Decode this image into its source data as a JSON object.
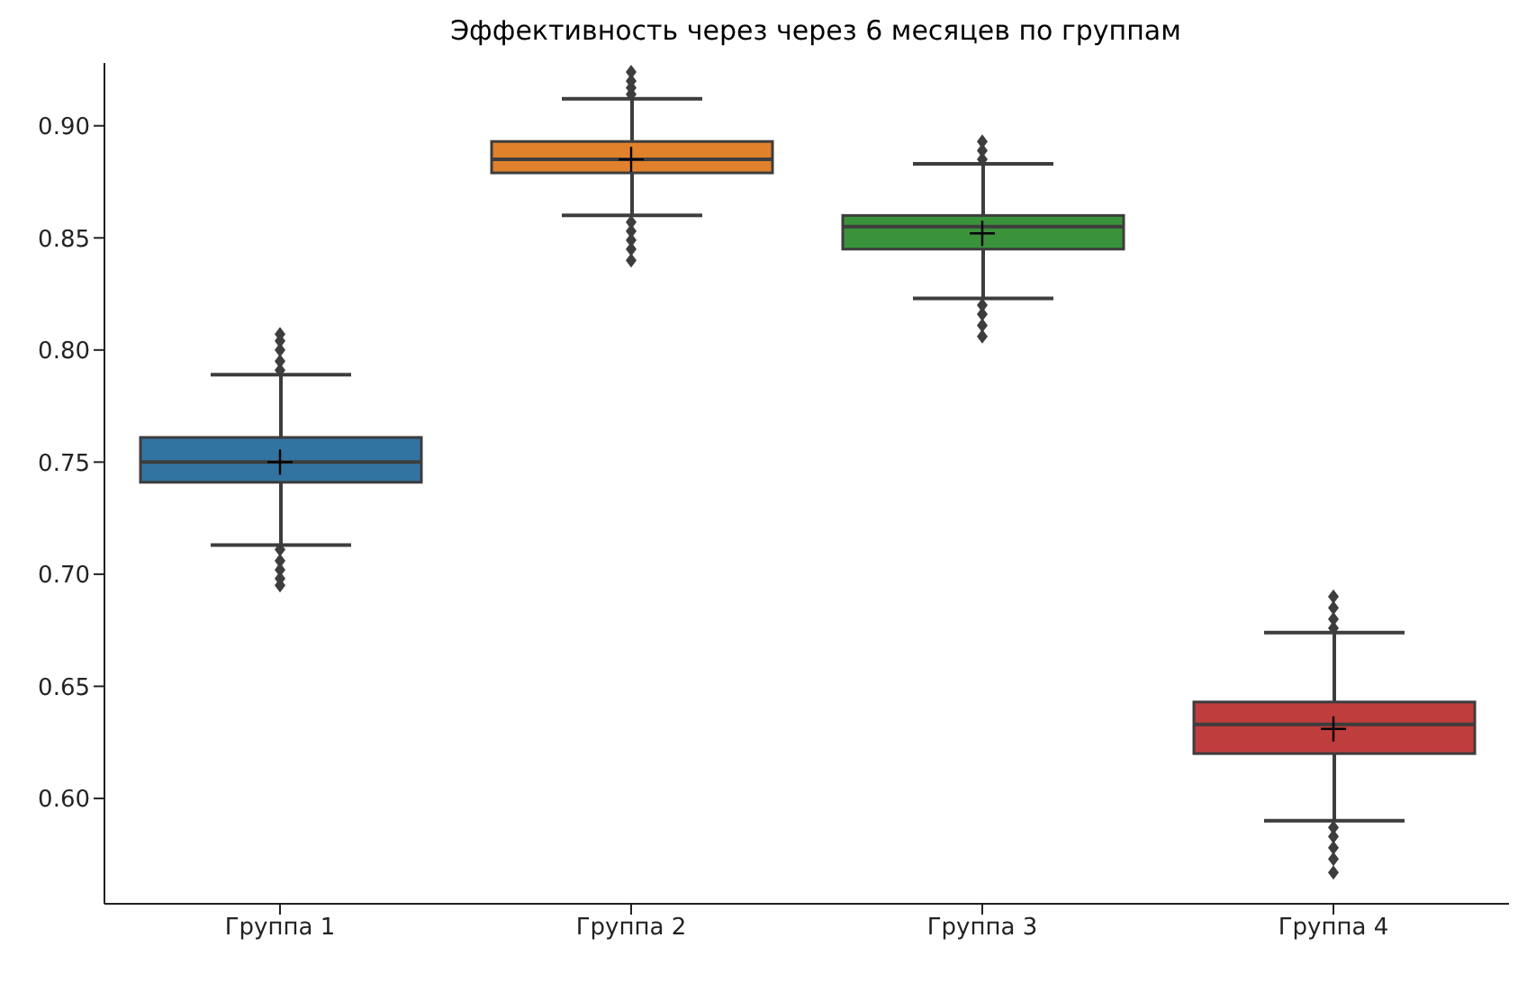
{
  "chart_data": {
    "type": "box",
    "title": "Эффективность через через 6 месяцев по группам",
    "categories": [
      "Группа 1",
      "Группа 2",
      "Группа 3",
      "Группа 4"
    ],
    "colors": [
      "#3274a1",
      "#e1812c",
      "#3a923a",
      "#c03d3e"
    ],
    "boxes": [
      {
        "low": 0.713,
        "q1": 0.741,
        "median": 0.75,
        "q3": 0.761,
        "high": 0.789,
        "mean": 0.75,
        "outliers": [
          0.791,
          0.795,
          0.8,
          0.804,
          0.807,
          0.711,
          0.706,
          0.702,
          0.698,
          0.695
        ]
      },
      {
        "low": 0.86,
        "q1": 0.879,
        "median": 0.885,
        "q3": 0.893,
        "high": 0.912,
        "mean": 0.885,
        "outliers": [
          0.914,
          0.917,
          0.92,
          0.924,
          0.857,
          0.853,
          0.849,
          0.845,
          0.84
        ]
      },
      {
        "low": 0.823,
        "q1": 0.845,
        "median": 0.855,
        "q3": 0.86,
        "high": 0.883,
        "mean": 0.852,
        "outliers": [
          0.885,
          0.889,
          0.893,
          0.82,
          0.816,
          0.811,
          0.806
        ]
      },
      {
        "low": 0.59,
        "q1": 0.62,
        "median": 0.633,
        "q3": 0.643,
        "high": 0.674,
        "mean": 0.631,
        "outliers": [
          0.676,
          0.68,
          0.685,
          0.69,
          0.587,
          0.583,
          0.578,
          0.573,
          0.567
        ]
      }
    ],
    "ylim": [
      0.553,
      0.928
    ],
    "yticks": [
      {
        "value": 0.6,
        "label": "0.60"
      },
      {
        "value": 0.65,
        "label": "0.65"
      },
      {
        "value": 0.7,
        "label": "0.70"
      },
      {
        "value": 0.75,
        "label": "0.75"
      },
      {
        "value": 0.8,
        "label": "0.80"
      },
      {
        "value": 0.85,
        "label": "0.85"
      },
      {
        "value": 0.9,
        "label": "0.90"
      }
    ],
    "grid": false,
    "legend": false
  }
}
